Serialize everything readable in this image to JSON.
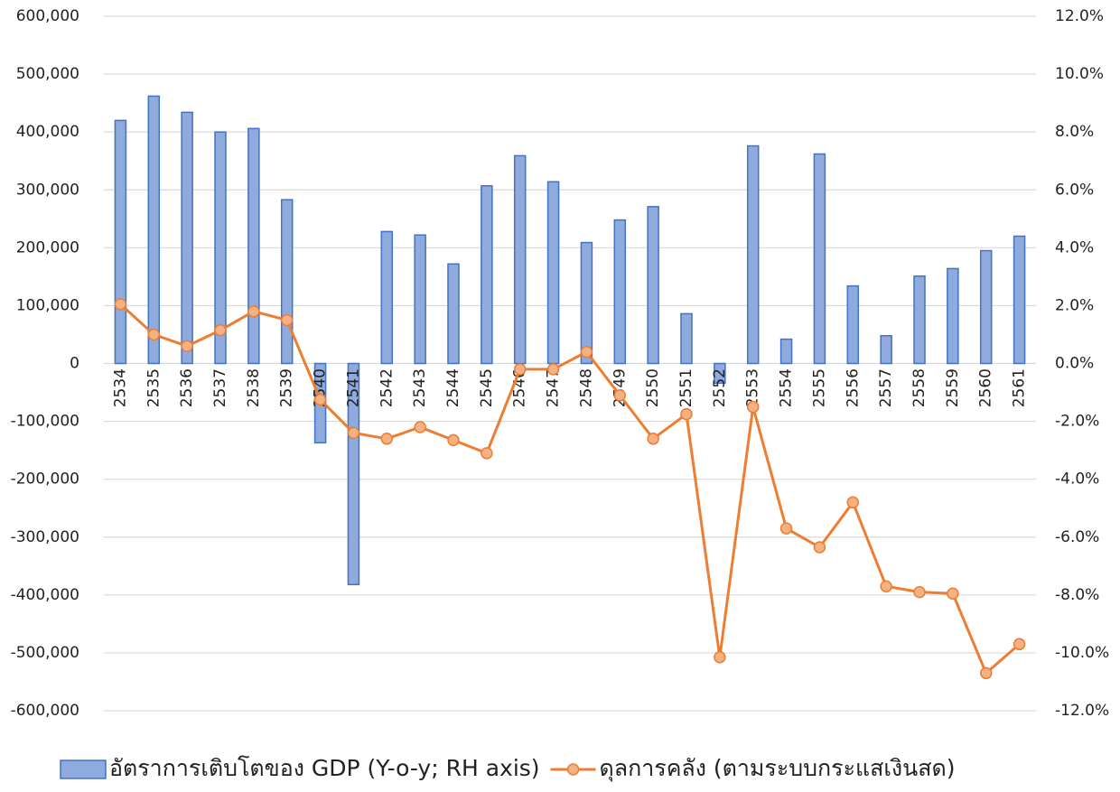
{
  "chart_data": {
    "type": "bar+line",
    "categories": [
      "2534",
      "2535",
      "2536",
      "2537",
      "2538",
      "2539",
      "2540",
      "2541",
      "2542",
      "2543",
      "2544",
      "2545",
      "2546",
      "2547",
      "2548",
      "2549",
      "2550",
      "2551",
      "2552",
      "2553",
      "2554",
      "2555",
      "2556",
      "2557",
      "2558",
      "2559",
      "2560",
      "2561"
    ],
    "series": [
      {
        "name": "อัตราการเติบโตของ GDP (Y-o-y; RH axis)",
        "type": "bar",
        "color": "#8faadc",
        "axis": "y",
        "values": [
          420000,
          462000,
          434000,
          400000,
          406000,
          283000,
          -137000,
          -382000,
          228000,
          222000,
          172000,
          307000,
          359000,
          314000,
          209000,
          248000,
          271000,
          86000,
          -34000,
          376000,
          42000,
          362000,
          134000,
          48000,
          151000,
          164000,
          195000,
          220000
        ]
      },
      {
        "name": "ดุลการคลัง (ตามระบบกระแสเงินสด)",
        "type": "line",
        "color": "#ed7d31",
        "axis": "y2",
        "values": [
          2.05,
          1.0,
          0.6,
          1.15,
          1.8,
          1.5,
          -1.25,
          -2.4,
          -2.6,
          -2.2,
          -2.65,
          -3.1,
          -0.2,
          -0.2,
          0.4,
          -1.1,
          -2.6,
          -1.75,
          -10.15,
          -1.5,
          -5.7,
          -6.35,
          -4.8,
          -7.7,
          -7.9,
          -7.95,
          -10.7,
          -9.7
        ]
      }
    ],
    "ylim": [
      -600000,
      600000
    ],
    "yticks": [
      {
        "value": -600000,
        "label": "-600,000"
      },
      {
        "value": -500000,
        "label": "-500,000"
      },
      {
        "value": -400000,
        "label": "-400,000"
      },
      {
        "value": -300000,
        "label": "-300,000"
      },
      {
        "value": -200000,
        "label": "-200,000"
      },
      {
        "value": -100000,
        "label": "-100,000"
      },
      0,
      {
        "value": 100000,
        "label": "100,000"
      },
      {
        "value": 200000,
        "label": "200,000"
      },
      {
        "value": 300000,
        "label": "300,000"
      },
      {
        "value": 400000,
        "label": "400,000"
      },
      {
        "value": 500000,
        "label": "500,000"
      },
      {
        "value": 600000,
        "label": "600,000"
      }
    ],
    "y2lim": [
      -12,
      12
    ],
    "y2ticks": [
      {
        "value": -12,
        "label": "-12.0%"
      },
      {
        "value": -10,
        "label": "-10.0%"
      },
      {
        "value": -8,
        "label": "-8.0%"
      },
      {
        "value": -6,
        "label": "-6.0%"
      },
      {
        "value": -4,
        "label": "-4.0%"
      },
      {
        "value": -2,
        "label": "-2.0%"
      },
      {
        "value": 0,
        "label": "0.0%"
      },
      {
        "value": 2,
        "label": "2.0%"
      },
      {
        "value": 4,
        "label": "4.0%"
      },
      {
        "value": 6,
        "label": "6.0%"
      },
      {
        "value": 8,
        "label": "8.0%"
      },
      {
        "value": 10,
        "label": "10.0%"
      },
      {
        "value": 12,
        "label": "12.0%"
      }
    ],
    "grid": true,
    "legend": "bottom"
  }
}
